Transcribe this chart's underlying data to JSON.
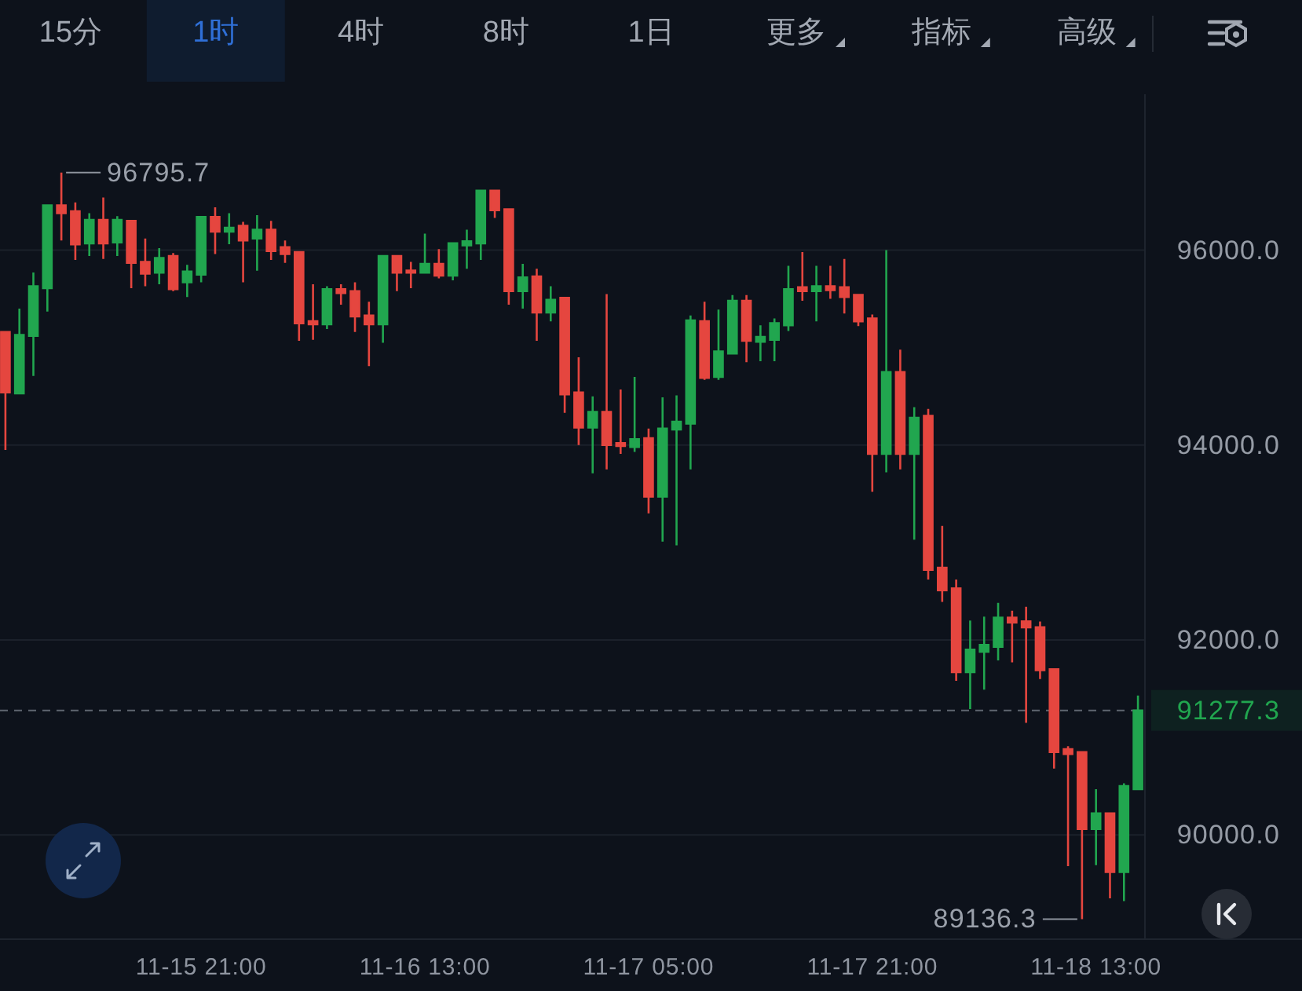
{
  "chart_data": {
    "type": "candlestick",
    "categories": [
      null,
      null,
      null,
      null,
      null,
      null,
      null,
      null,
      null,
      null,
      null,
      null,
      null,
      null,
      "11-15 21:00",
      null,
      null,
      null,
      null,
      null,
      null,
      null,
      null,
      null,
      null,
      null,
      null,
      null,
      null,
      null,
      "11-16 13:00",
      null,
      null,
      null,
      null,
      null,
      null,
      null,
      null,
      null,
      null,
      null,
      null,
      null,
      null,
      null,
      "11-17 05:00",
      null,
      null,
      null,
      null,
      null,
      null,
      null,
      null,
      null,
      null,
      null,
      null,
      null,
      null,
      null,
      "11-17 21:00",
      null,
      null,
      null,
      null,
      null,
      null,
      null,
      null,
      null,
      null,
      null,
      null,
      null,
      null,
      null,
      "11-18 13:00",
      null,
      null,
      null
    ],
    "ohlc": [
      [
        95160,
        95170,
        93950,
        94540
      ],
      [
        94530,
        95400,
        94520,
        95130
      ],
      [
        95120,
        95770,
        94710,
        95630
      ],
      [
        95610,
        96470,
        95370,
        96460
      ],
      [
        96460,
        96795.7,
        96100,
        96380
      ],
      [
        96400,
        96490,
        95900,
        96060
      ],
      [
        96070,
        96380,
        95940,
        96310
      ],
      [
        96310,
        96540,
        95910,
        96070
      ],
      [
        96080,
        96350,
        95940,
        96310
      ],
      [
        96300,
        96310,
        95610,
        95870
      ],
      [
        95880,
        96120,
        95630,
        95760
      ],
      [
        95770,
        96020,
        95650,
        95920
      ],
      [
        95940,
        95970,
        95580,
        95600
      ],
      [
        95670,
        95850,
        95520,
        95780
      ],
      [
        95750,
        96350,
        95670,
        96340
      ],
      [
        96340,
        96440,
        95960,
        96190
      ],
      [
        96190,
        96380,
        96060,
        96230
      ],
      [
        96250,
        96290,
        95670,
        96100
      ],
      [
        96120,
        96360,
        95790,
        96210
      ],
      [
        96210,
        96300,
        95900,
        95990
      ],
      [
        96030,
        96100,
        95870,
        95960
      ],
      [
        95980,
        95990,
        95070,
        95250
      ],
      [
        95270,
        95650,
        95080,
        95240
      ],
      [
        95240,
        95630,
        95190,
        95600
      ],
      [
        95600,
        95650,
        95440,
        95560
      ],
      [
        95580,
        95670,
        95160,
        95320
      ],
      [
        95330,
        95470,
        94810,
        95240
      ],
      [
        95240,
        95950,
        95050,
        95940
      ],
      [
        95940,
        95950,
        95580,
        95770
      ],
      [
        95790,
        95880,
        95610,
        95770
      ],
      [
        95770,
        96170,
        95760,
        95860
      ],
      [
        95860,
        96010,
        95710,
        95740
      ],
      [
        95740,
        96080,
        95690,
        96070
      ],
      [
        96050,
        96210,
        95810,
        96090
      ],
      [
        96070,
        96620,
        95900,
        96610
      ],
      [
        96610,
        96620,
        96330,
        96410
      ],
      [
        96420,
        96430,
        95440,
        95580
      ],
      [
        95580,
        95860,
        95400,
        95720
      ],
      [
        95730,
        95810,
        95070,
        95360
      ],
      [
        95360,
        95630,
        95270,
        95490
      ],
      [
        95510,
        95520,
        94330,
        94520
      ],
      [
        94540,
        94900,
        94000,
        94180
      ],
      [
        94180,
        94500,
        93710,
        94340
      ],
      [
        94340,
        95550,
        93750,
        94000
      ],
      [
        94020,
        94570,
        93910,
        93990
      ],
      [
        93980,
        94700,
        93930,
        94060
      ],
      [
        94070,
        94170,
        93300,
        93470
      ],
      [
        93470,
        94490,
        93010,
        94170
      ],
      [
        94160,
        94510,
        92970,
        94240
      ],
      [
        94220,
        95330,
        93750,
        95280
      ],
      [
        95270,
        95470,
        94670,
        94690
      ],
      [
        94700,
        95390,
        94670,
        94960
      ],
      [
        94940,
        95540,
        94930,
        95480
      ],
      [
        95480,
        95540,
        94850,
        95070
      ],
      [
        95060,
        95230,
        94860,
        95110
      ],
      [
        95080,
        95300,
        94860,
        95250
      ],
      [
        95230,
        95840,
        95170,
        95600
      ],
      [
        95620,
        95980,
        95480,
        95580
      ],
      [
        95580,
        95840,
        95270,
        95630
      ],
      [
        95630,
        95840,
        95500,
        95590
      ],
      [
        95620,
        95910,
        95350,
        95520
      ],
      [
        95540,
        95550,
        95220,
        95270
      ],
      [
        95300,
        95340,
        93520,
        93910
      ],
      [
        93910,
        96000,
        93720,
        94750
      ],
      [
        94750,
        94980,
        93750,
        93910
      ],
      [
        93910,
        94390,
        93030,
        94280
      ],
      [
        94300,
        94370,
        92620,
        92720
      ],
      [
        92740,
        93170,
        92390,
        92510
      ],
      [
        92530,
        92620,
        91580,
        91670
      ],
      [
        91670,
        92200,
        91290,
        91900
      ],
      [
        91880,
        92240,
        91490,
        91950
      ],
      [
        91930,
        92380,
        91790,
        92230
      ],
      [
        92230,
        92300,
        91770,
        92180
      ],
      [
        92190,
        92340,
        91150,
        92130
      ],
      [
        92130,
        92190,
        91600,
        91690
      ],
      [
        91700,
        91710,
        90680,
        90850
      ],
      [
        90880,
        90910,
        89680,
        90830
      ],
      [
        90850,
        90860,
        89136.3,
        90060
      ],
      [
        90060,
        90470,
        89690,
        90220
      ],
      [
        90220,
        90230,
        89350,
        89620
      ],
      [
        89620,
        90530,
        89320,
        90500
      ],
      [
        90470,
        91430,
        90460,
        91277.3
      ]
    ],
    "colors": [
      "#e5463f",
      "#21a64f",
      "#21a64f",
      "#21a64f",
      "#e5463f",
      "#e5463f",
      "#21a64f",
      "#e5463f",
      "#21a64f",
      "#e5463f",
      "#e5463f",
      "#21a64f",
      "#e5463f",
      "#21a64f",
      "#21a64f",
      "#e5463f",
      "#21a64f",
      "#e5463f",
      "#21a64f",
      "#e5463f",
      "#e5463f",
      "#e5463f",
      "#e5463f",
      "#21a64f",
      "#e5463f",
      "#e5463f",
      "#e5463f",
      "#21a64f",
      "#e5463f",
      "#e5463f",
      "#21a64f",
      "#e5463f",
      "#21a64f",
      "#21a64f",
      "#21a64f",
      "#e5463f",
      "#e5463f",
      "#21a64f",
      "#e5463f",
      "#21a64f",
      "#e5463f",
      "#e5463f",
      "#21a64f",
      "#e5463f",
      "#e5463f",
      "#21a64f",
      "#e5463f",
      "#21a64f",
      "#21a64f",
      "#21a64f",
      "#e5463f",
      "#21a64f",
      "#21a64f",
      "#e5463f",
      "#21a64f",
      "#21a64f",
      "#21a64f",
      "#e5463f",
      "#21a64f",
      "#e5463f",
      "#e5463f",
      "#e5463f",
      "#e5463f",
      "#21a64f",
      "#e5463f",
      "#21a64f",
      "#e5463f",
      "#e5463f",
      "#e5463f",
      "#21a64f",
      "#21a64f",
      "#21a64f",
      "#e5463f",
      "#e5463f",
      "#e5463f",
      "#e5463f",
      "#e5463f",
      "#e5463f",
      "#21a64f",
      "#e5463f",
      "#21a64f",
      "#21a64f"
    ],
    "ylim": [
      88930,
      97600
    ],
    "yticks": [
      {
        "value": 90000,
        "label": "90000.0"
      },
      {
        "value": 92000,
        "label": "92000.0"
      },
      {
        "value": 94000,
        "label": "94000.0"
      },
      {
        "value": 96000,
        "label": "96000.0"
      }
    ],
    "grid": "y",
    "ref_lines": [
      {
        "axis": "y",
        "value": 91277.3,
        "label": "91277.3",
        "color": "#5f6670",
        "line_style": "dashed"
      }
    ],
    "annotations": [
      "15分",
      "1时",
      "4时",
      "8时",
      "1日",
      "更多",
      "指标",
      "高级",
      "96795.7",
      "89136.3"
    ]
  }
}
